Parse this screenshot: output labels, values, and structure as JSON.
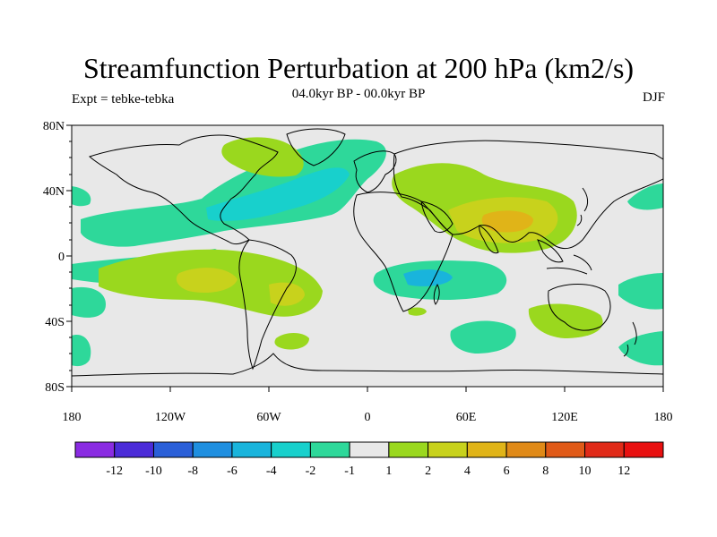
{
  "title": "Streamfunction Perturbation at 200 hPa (km2/s)",
  "subtitle": "04.0kyr BP - 00.0kyr BP",
  "experiment": "Expt = tebke-tebka",
  "season": "DJF",
  "lat_labels": [
    "80N",
    "40N",
    "0",
    "40S",
    "80S"
  ],
  "lon_labels": [
    "180",
    "120W",
    "60W",
    "0",
    "60E",
    "120E",
    "180"
  ],
  "colorbar": {
    "labels": [
      "-12",
      "-10",
      "-8",
      "-6",
      "-4",
      "-2",
      "-1",
      "1",
      "2",
      "4",
      "6",
      "8",
      "10",
      "12"
    ],
    "colors": [
      "#8a2be2",
      "#4b2bd8",
      "#2a5fd8",
      "#1f8fe0",
      "#19b4dc",
      "#18d0cc",
      "#2ed89a",
      "#e8e8e8",
      "#9ad81e",
      "#c8d21c",
      "#e0b418",
      "#e08a18",
      "#e05a18",
      "#e02a18",
      "#e81010"
    ]
  },
  "colors": {
    "background": "#e8e8e8",
    "green_pos": "#9ad81e",
    "yellow": "#c8d21c",
    "orange": "#e0b418",
    "teal": "#2ed89a",
    "cyan": "#18d0cc",
    "blue": "#19b4dc"
  }
}
